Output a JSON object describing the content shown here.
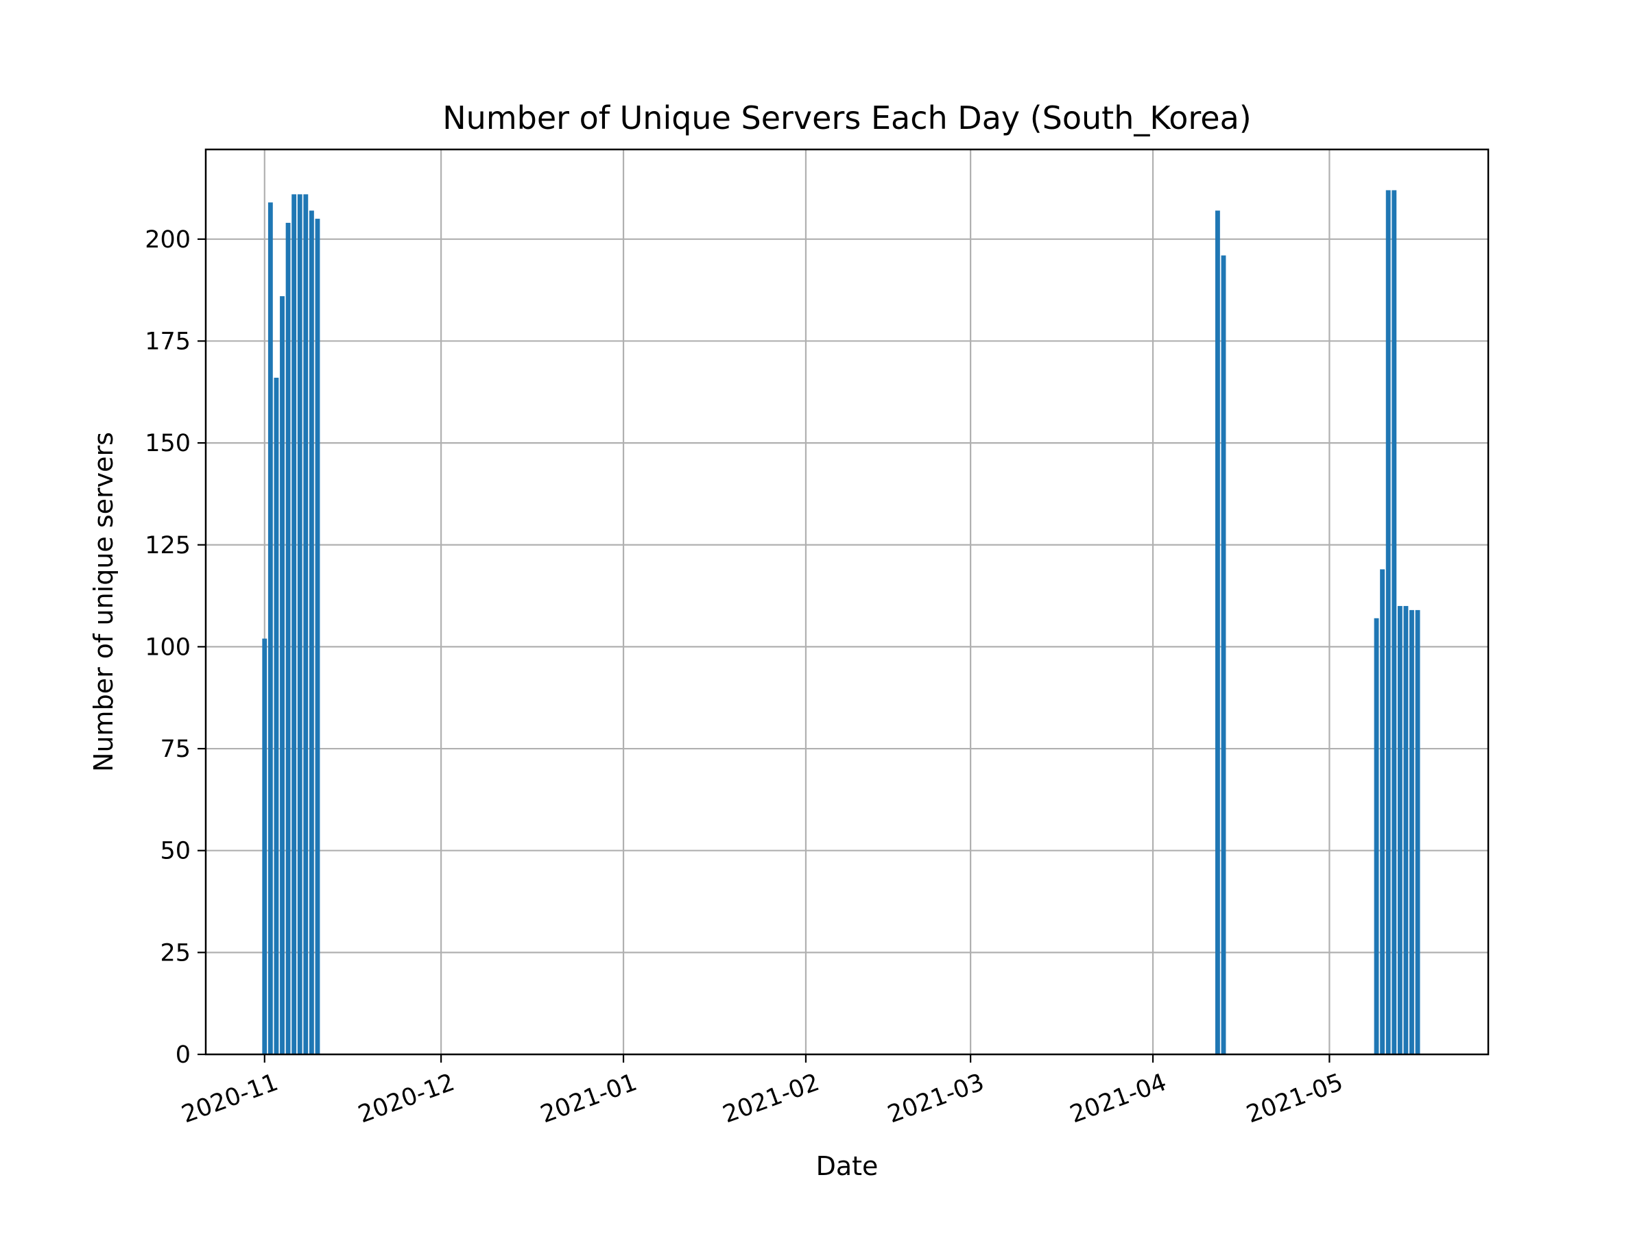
{
  "chart_data": {
    "type": "bar",
    "title": "Number of Unique Servers Each Day (South_Korea)",
    "xlabel": "Date",
    "ylabel": "Number of unique servers",
    "x_axis_type": "date",
    "ylim": [
      0,
      222
    ],
    "grid": true,
    "colors": {
      "bar": "#1f77b4",
      "grid": "#b0b0b0",
      "axis": "#000000"
    },
    "yticks": [
      0,
      25,
      50,
      75,
      100,
      125,
      150,
      175,
      200
    ],
    "xticks": [
      "2020-11",
      "2020-12",
      "2021-01",
      "2021-02",
      "2021-03",
      "2021-04",
      "2021-05"
    ],
    "series": [
      {
        "dates": [
          "2020-11-01",
          "2020-11-02",
          "2020-11-03",
          "2020-11-04",
          "2020-11-05",
          "2020-11-06",
          "2020-11-07",
          "2020-11-08",
          "2020-11-09",
          "2020-11-10",
          "2021-04-12",
          "2021-04-13",
          "2021-05-09",
          "2021-05-10",
          "2021-05-11",
          "2021-05-12",
          "2021-05-13",
          "2021-05-14",
          "2021-05-15",
          "2021-05-16"
        ],
        "values": [
          102,
          209,
          166,
          186,
          204,
          211,
          211,
          211,
          207,
          205,
          207,
          196,
          107,
          119,
          212,
          212,
          110,
          110,
          109,
          109
        ]
      }
    ]
  }
}
